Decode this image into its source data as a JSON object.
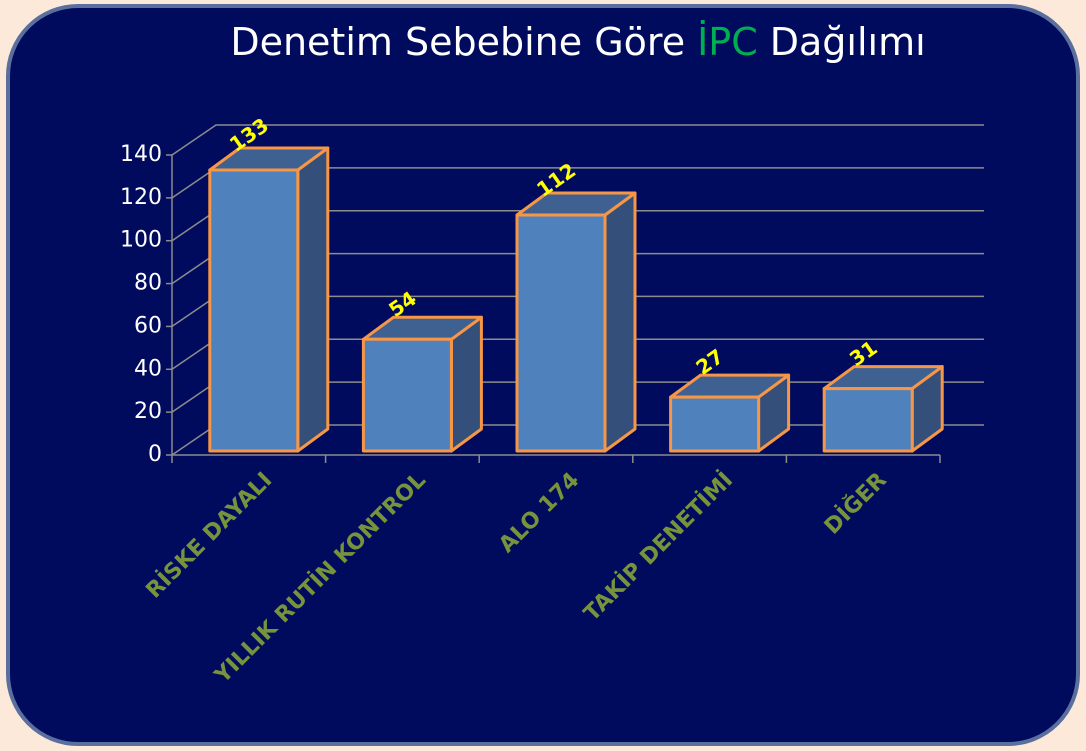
{
  "chart_data": {
    "type": "bar3d",
    "title": [
      "Denetim Sebebine Göre",
      "İPC",
      "Dağılımı"
    ],
    "title_colors": [
      "#ffffff",
      "#00b050",
      "#ffffff"
    ],
    "categories": [
      "RİSKE DAYALI",
      "YILLIK RUTİN KONTROL",
      "ALO 174",
      "TAKİP DENETİMİ",
      "DİĞER"
    ],
    "values": [
      133,
      54,
      112,
      27,
      31
    ],
    "color": "#4f81bd",
    "edge_color": "#f79646",
    "label_color": "#ffff00",
    "category_color": "#77933c",
    "ylim": [
      0,
      140
    ],
    "yticks": [
      0,
      20,
      40,
      60,
      80,
      100,
      120,
      140
    ],
    "grid": true
  }
}
